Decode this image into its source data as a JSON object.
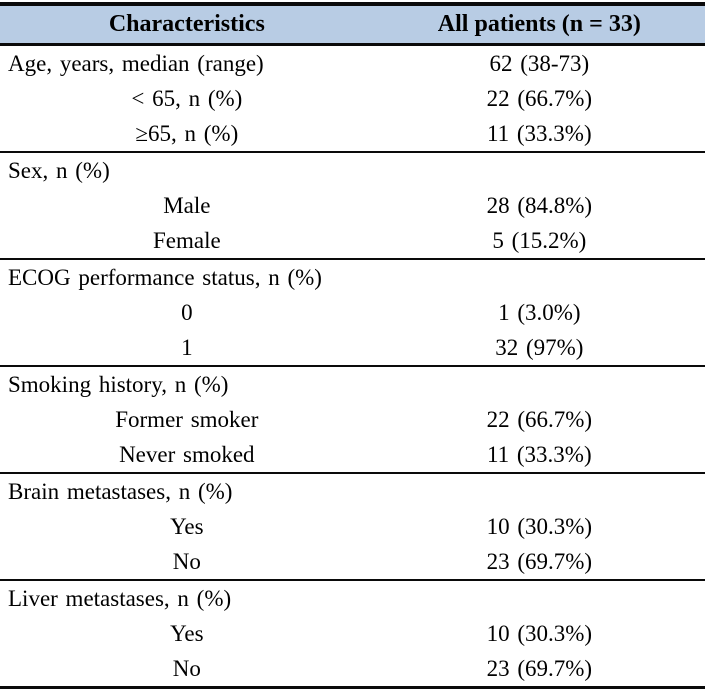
{
  "table": {
    "header": {
      "label": "Characteristics",
      "value": "All patients (n = 33)"
    },
    "header_bg_color": "#b8cce4",
    "border_color": "#0a0a0a",
    "sections": [
      {
        "rows": [
          {
            "type": "category",
            "label": "Age, years, median (range)",
            "value": "62 (38-73)"
          },
          {
            "type": "sub",
            "label": "< 65, n (%)",
            "value": "22 (66.7%)"
          },
          {
            "type": "sub",
            "label": "≥65, n (%)",
            "value": "11 (33.3%)"
          }
        ]
      },
      {
        "rows": [
          {
            "type": "category",
            "label": "Sex, n (%)",
            "value": ""
          },
          {
            "type": "sub",
            "label": "Male",
            "value": "28 (84.8%)"
          },
          {
            "type": "sub",
            "label": "Female",
            "value": "5 (15.2%)"
          }
        ]
      },
      {
        "rows": [
          {
            "type": "category",
            "label": "ECOG performance status, n (%)",
            "value": ""
          },
          {
            "type": "sub",
            "label": "0",
            "value": "1 (3.0%)"
          },
          {
            "type": "sub",
            "label": "1",
            "value": "32 (97%)"
          }
        ]
      },
      {
        "rows": [
          {
            "type": "category",
            "label": "Smoking history, n (%)",
            "value": ""
          },
          {
            "type": "sub",
            "label": "Former smoker",
            "value": "22 (66.7%)"
          },
          {
            "type": "sub",
            "label": "Never smoked",
            "value": "11 (33.3%)"
          }
        ]
      },
      {
        "rows": [
          {
            "type": "category",
            "label": "Brain metastases, n (%)",
            "value": ""
          },
          {
            "type": "sub",
            "label": "Yes",
            "value": "10 (30.3%)"
          },
          {
            "type": "sub",
            "label": "No",
            "value": "23 (69.7%)"
          }
        ]
      },
      {
        "rows": [
          {
            "type": "category",
            "label": "Liver metastases, n (%)",
            "value": ""
          },
          {
            "type": "sub",
            "label": "Yes",
            "value": "10 (30.3%)"
          },
          {
            "type": "sub",
            "label": "No",
            "value": "23 (69.7%)"
          }
        ]
      }
    ]
  }
}
